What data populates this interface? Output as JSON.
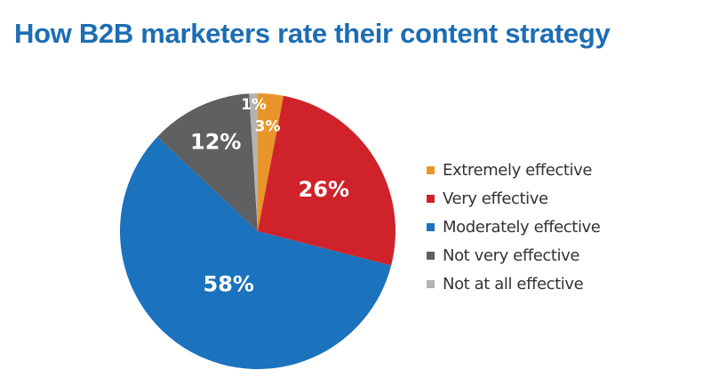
{
  "chart_data": {
    "type": "pie",
    "title": "How B2B marketers rate their content strategy",
    "start": "12 o'clock, clockwise",
    "legend_placement": "right",
    "slices": [
      {
        "name": "Extremely effective",
        "value": 3,
        "label": "3%",
        "color": "#e8962a"
      },
      {
        "name": "Very effective",
        "value": 26,
        "label": "26%",
        "color": "#d0222b"
      },
      {
        "name": "Moderately effective",
        "value": 58,
        "label": "58%",
        "color": "#1b72bd"
      },
      {
        "name": "Not very effective",
        "value": 12,
        "label": "12%",
        "color": "#5f6062"
      },
      {
        "name": "Not at all effective",
        "value": 1,
        "label": "1%",
        "color": "#b2b3b5"
      }
    ]
  }
}
